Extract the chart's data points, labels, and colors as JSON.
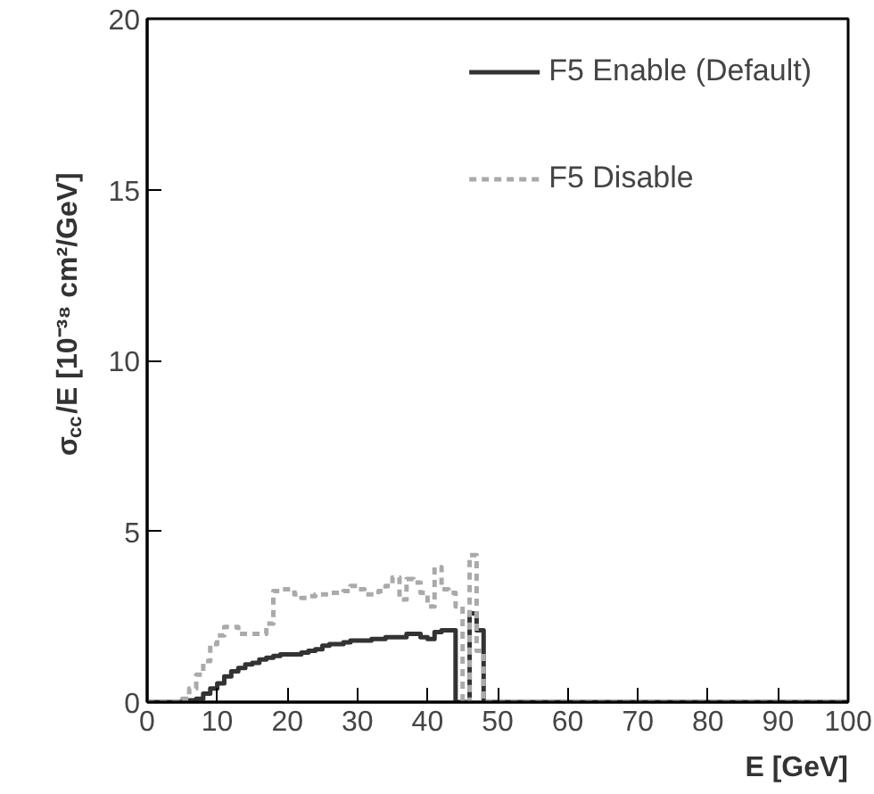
{
  "chart_data": {
    "type": "histogram",
    "xlabel": "E [GeV]",
    "ylabel": "σ$_{cc}$/E [10⁻³⁸ cm²/GeV]",
    "bins": [
      0,
      1,
      2,
      3,
      4,
      5,
      6,
      7,
      8,
      9,
      10,
      11,
      12,
      13,
      14,
      15,
      16,
      17,
      18,
      19,
      20,
      21,
      22,
      23,
      24,
      25,
      26,
      27,
      28,
      29,
      30,
      31,
      32,
      33,
      34,
      35,
      36,
      37,
      38,
      39,
      40,
      41,
      42,
      43,
      44,
      45,
      46,
      47,
      48,
      49,
      50,
      51,
      52,
      53,
      54,
      55,
      56,
      57,
      58,
      59,
      60,
      61,
      62,
      63,
      64,
      65,
      66,
      67,
      68,
      69,
      70,
      71,
      72,
      73,
      74,
      75,
      76,
      77,
      78,
      79,
      80,
      81,
      82,
      83,
      84,
      85,
      86,
      87,
      88,
      89,
      90,
      91,
      92,
      93,
      94,
      95,
      96,
      97,
      98,
      99,
      100
    ],
    "series": [
      {
        "name": "F5 Enable (Default)",
        "color": "#333333",
        "line_style": "solid",
        "values": [
          0,
          0,
          0,
          0,
          0,
          0.02,
          0.05,
          0.1,
          0.25,
          0.4,
          0.55,
          0.75,
          0.9,
          1.0,
          1.1,
          1.15,
          1.25,
          1.3,
          1.35,
          1.4,
          1.4,
          1.4,
          1.45,
          1.5,
          1.55,
          1.65,
          1.7,
          1.7,
          1.75,
          1.8,
          1.8,
          1.8,
          1.85,
          1.85,
          1.9,
          1.9,
          1.9,
          2.0,
          2.0,
          1.9,
          1.85,
          2.05,
          2.1,
          2.1,
          0,
          0,
          2.6,
          2.1,
          0,
          0,
          0,
          0,
          0,
          0,
          0,
          0,
          0,
          0,
          0,
          0,
          0,
          0,
          0,
          0,
          0,
          0,
          0,
          0,
          0,
          0,
          0,
          0,
          0,
          0,
          0,
          0,
          0,
          0,
          0,
          0,
          0,
          0,
          0,
          0,
          0,
          0,
          0,
          0,
          0,
          0,
          0,
          0,
          0,
          0,
          0,
          0,
          0,
          0,
          0,
          0
        ]
      },
      {
        "name": "F5 Disable",
        "color": "#aaaaaa",
        "line_style": "dashed",
        "values": [
          0,
          0,
          0,
          0,
          0,
          0.1,
          0.4,
          0.8,
          1.2,
          1.7,
          1.95,
          2.2,
          2.2,
          2.0,
          2.0,
          2.0,
          2.0,
          2.3,
          3.25,
          3.3,
          3.3,
          3.15,
          3.05,
          3.1,
          3.15,
          3.15,
          3.2,
          3.2,
          3.25,
          3.4,
          3.3,
          3.15,
          3.15,
          3.25,
          3.4,
          3.65,
          3.0,
          3.6,
          3.5,
          3.2,
          2.8,
          3.95,
          3.3,
          3.2,
          2.8,
          0,
          4.3,
          1.5,
          0,
          0,
          0,
          0,
          0,
          0,
          0,
          0,
          0,
          0,
          0,
          0,
          0,
          0,
          0,
          0,
          0,
          0,
          0,
          0,
          0,
          0,
          0,
          0,
          0,
          0,
          0,
          0,
          0,
          0,
          0,
          0,
          0,
          0,
          0,
          0,
          0,
          0,
          0,
          0,
          0,
          0,
          0,
          0,
          0,
          0,
          0,
          0,
          0,
          0,
          0,
          0
        ]
      }
    ],
    "xlim": [
      0,
      100
    ],
    "ylim": [
      0,
      20
    ],
    "xticks": [
      0,
      10,
      20,
      30,
      40,
      50,
      60,
      70,
      80,
      90,
      100
    ],
    "yticks": [
      0,
      5,
      10,
      15,
      20
    ],
    "grid": false,
    "legend": "top right"
  }
}
